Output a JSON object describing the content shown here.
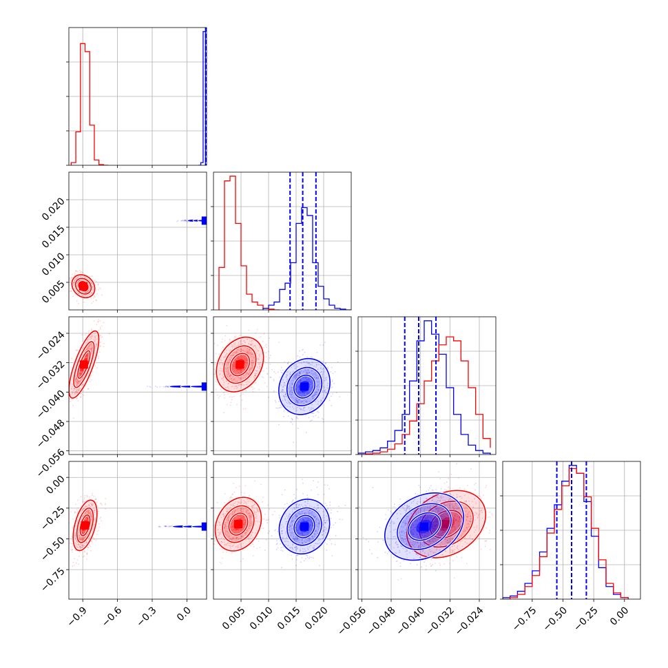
{
  "chart_data": {
    "type": "corner",
    "title": "",
    "grid": true,
    "colors": {
      "red": "#ff0000",
      "blue": "#0000ff"
    },
    "parameters": [
      {
        "index": 0,
        "range": [
          -1.02,
          0.17
        ],
        "ticks": [
          -0.9,
          -0.6,
          -0.3,
          0.0
        ],
        "tick_labels": [
          "−0.9",
          "−0.6",
          "−0.3",
          "0.0"
        ]
      },
      {
        "index": 1,
        "range": [
          0.0,
          0.025
        ],
        "ticks": [
          0.005,
          0.01,
          0.015,
          0.02
        ],
        "tick_labels": [
          "0.005",
          "0.010",
          "0.015",
          "0.020"
        ]
      },
      {
        "index": 2,
        "range": [
          -0.057,
          -0.0195
        ],
        "ticks": [
          -0.056,
          -0.048,
          -0.04,
          -0.032,
          -0.024
        ],
        "tick_labels": [
          "−0.056",
          "−0.048",
          "−0.040",
          "−0.032",
          "−0.024"
        ]
      },
      {
        "index": 3,
        "range": [
          -0.99,
          0.13
        ],
        "ticks": [
          -0.75,
          -0.5,
          -0.25,
          0.0
        ],
        "tick_labels": [
          "−0.75",
          "−0.50",
          "−0.25",
          "0.00"
        ]
      }
    ],
    "marginals": [
      {
        "param": 0,
        "series": [
          {
            "color": "red",
            "bins": [
              -1.0,
              -0.96,
              -0.92,
              -0.88,
              -0.84,
              -0.8,
              -0.76,
              -0.72,
              -0.68
            ],
            "counts": [
              0.02,
              0.25,
              0.91,
              0.85,
              0.3,
              0.04,
              0.005,
              0.0
            ]
          },
          {
            "color": "blue",
            "bins": [
              0.1,
              0.12,
              0.14,
              0.16,
              0.18
            ],
            "counts": [
              0.0,
              0.02,
              1.0,
              0.0
            ]
          }
        ],
        "quantiles": [
          {
            "color": "blue",
            "values": [
              0.162,
              0.164,
              0.166
            ]
          }
        ]
      },
      {
        "param": 1,
        "series": [
          {
            "color": "red",
            "bins": [
              0.001,
              0.002,
              0.003,
              0.004,
              0.005,
              0.006,
              0.007,
              0.008,
              0.009,
              0.01,
              0.011,
              0.012
            ],
            "counts": [
              0.27,
              0.82,
              0.85,
              0.55,
              0.28,
              0.1,
              0.05,
              0.03,
              0.01,
              0.005,
              0.0
            ]
          },
          {
            "color": "blue",
            "bins": [
              0.009,
              0.01,
              0.011,
              0.012,
              0.013,
              0.014,
              0.015,
              0.016,
              0.017,
              0.018,
              0.019,
              0.02,
              0.021,
              0.022,
              0.023,
              0.024,
              0.025
            ],
            "counts": [
              0.01,
              0.03,
              0.05,
              0.13,
              0.17,
              0.3,
              0.55,
              0.65,
              0.6,
              0.3,
              0.15,
              0.07,
              0.03,
              0.01,
              0.005,
              0.0
            ]
          }
        ],
        "quantiles": [
          {
            "color": "blue",
            "values": [
              0.0139,
              0.0162,
              0.0186
            ]
          }
        ]
      },
      {
        "param": 2,
        "series": [
          {
            "color": "blue",
            "bins": [
              -0.057,
              -0.055,
              -0.053,
              -0.051,
              -0.049,
              -0.047,
              -0.045,
              -0.043,
              -0.041,
              -0.039,
              -0.037,
              -0.035,
              -0.033,
              -0.031,
              -0.029,
              -0.027,
              -0.025,
              -0.023,
              -0.021
            ],
            "counts": [
              0.01,
              0.02,
              0.03,
              0.05,
              0.1,
              0.18,
              0.3,
              0.55,
              0.85,
              1.0,
              0.9,
              0.75,
              0.5,
              0.3,
              0.15,
              0.07,
              0.03,
              0.01
            ]
          },
          {
            "color": "red",
            "bins": [
              -0.057,
              -0.055,
              -0.053,
              -0.051,
              -0.049,
              -0.047,
              -0.045,
              -0.043,
              -0.041,
              -0.039,
              -0.037,
              -0.035,
              -0.033,
              -0.031,
              -0.029,
              -0.027,
              -0.025,
              -0.023,
              -0.021
            ],
            "counts": [
              0.0,
              0.005,
              0.01,
              0.02,
              0.04,
              0.08,
              0.15,
              0.25,
              0.38,
              0.55,
              0.7,
              0.82,
              0.88,
              0.85,
              0.7,
              0.5,
              0.3,
              0.12,
              0.05
            ]
          }
        ],
        "quantiles": [
          {
            "color": "blue",
            "values": [
              -0.0443,
              -0.0405,
              -0.0358
            ]
          }
        ]
      },
      {
        "param": 3,
        "series": [
          {
            "color": "blue",
            "bins": [
              -0.99,
              -0.93,
              -0.87,
              -0.81,
              -0.75,
              -0.69,
              -0.63,
              -0.57,
              -0.51,
              -0.45,
              -0.39,
              -0.33,
              -0.27,
              -0.21,
              -0.15,
              -0.09,
              -0.03,
              0.03
            ],
            "counts": [
              0.01,
              0.02,
              0.05,
              0.1,
              0.18,
              0.3,
              0.45,
              0.6,
              0.75,
              0.85,
              0.8,
              0.62,
              0.4,
              0.2,
              0.08,
              0.03,
              0.01
            ]
          },
          {
            "color": "red",
            "bins": [
              -0.99,
              -0.93,
              -0.87,
              -0.81,
              -0.75,
              -0.69,
              -0.63,
              -0.57,
              -0.51,
              -0.45,
              -0.39,
              -0.33,
              -0.27,
              -0.21,
              -0.15,
              -0.09,
              -0.03,
              0.03
            ],
            "counts": [
              0.0,
              0.01,
              0.03,
              0.08,
              0.15,
              0.27,
              0.42,
              0.57,
              0.72,
              0.83,
              0.8,
              0.65,
              0.45,
              0.25,
              0.1,
              0.04,
              0.01
            ]
          }
        ],
        "quantiles": [
          {
            "color": "blue",
            "values": [
              -0.55,
              -0.43,
              -0.31
            ]
          }
        ]
      }
    ],
    "pairs": [
      {
        "x_param": 0,
        "y_param": 1,
        "blobs": [
          {
            "color": "red",
            "cx": -0.895,
            "cy": 0.0043,
            "sx": 0.05,
            "sy": 0.0013,
            "angle_deg": -45,
            "extent": 3.2
          },
          {
            "color": "blue",
            "cx": 0.163,
            "cy": 0.0162,
            "sx": 0.004,
            "sy": 0.0018,
            "angle_deg": 0,
            "extent": 3.4
          }
        ]
      },
      {
        "x_param": 0,
        "y_param": 2,
        "blobs": [
          {
            "color": "red",
            "cx": -0.89,
            "cy": -0.0325,
            "sx": 0.045,
            "sy": 0.0055,
            "angle_deg": 70,
            "extent": 3.2
          },
          {
            "color": "blue",
            "cx": 0.163,
            "cy": -0.0385,
            "sx": 0.004,
            "sy": 0.0055,
            "angle_deg": 0,
            "extent": 3.4
          }
        ]
      },
      {
        "x_param": 1,
        "y_param": 2,
        "blobs": [
          {
            "color": "red",
            "cx": 0.0048,
            "cy": -0.0325,
            "sx": 0.0022,
            "sy": 0.0045,
            "angle_deg": 60,
            "extent": 3.2
          },
          {
            "color": "blue",
            "cx": 0.0165,
            "cy": -0.0385,
            "sx": 0.0025,
            "sy": 0.0045,
            "angle_deg": 60,
            "extent": 3.2
          }
        ]
      },
      {
        "x_param": 0,
        "y_param": 3,
        "blobs": [
          {
            "color": "red",
            "cx": -0.88,
            "cy": -0.39,
            "sx": 0.05,
            "sy": 0.12,
            "angle_deg": 75,
            "extent": 3.2
          },
          {
            "color": "blue",
            "cx": 0.163,
            "cy": -0.4,
            "sx": 0.004,
            "sy": 0.15,
            "angle_deg": 0,
            "extent": 3.4
          }
        ]
      },
      {
        "x_param": 1,
        "y_param": 3,
        "blobs": [
          {
            "color": "red",
            "cx": 0.0045,
            "cy": -0.38,
            "sx": 0.0022,
            "sy": 0.13,
            "angle_deg": 62,
            "extent": 3.2
          },
          {
            "color": "blue",
            "cx": 0.0165,
            "cy": -0.4,
            "sx": 0.0025,
            "sy": 0.13,
            "angle_deg": 62,
            "extent": 3.2
          }
        ]
      },
      {
        "x_param": 2,
        "y_param": 3,
        "blobs": [
          {
            "color": "red",
            "cx": -0.033,
            "cy": -0.38,
            "sx": 0.0065,
            "sy": 0.14,
            "angle_deg": 30,
            "extent": 3.2
          },
          {
            "color": "blue",
            "cx": -0.039,
            "cy": -0.4,
            "sx": 0.0065,
            "sy": 0.14,
            "angle_deg": 30,
            "extent": 3.2
          }
        ]
      }
    ]
  }
}
